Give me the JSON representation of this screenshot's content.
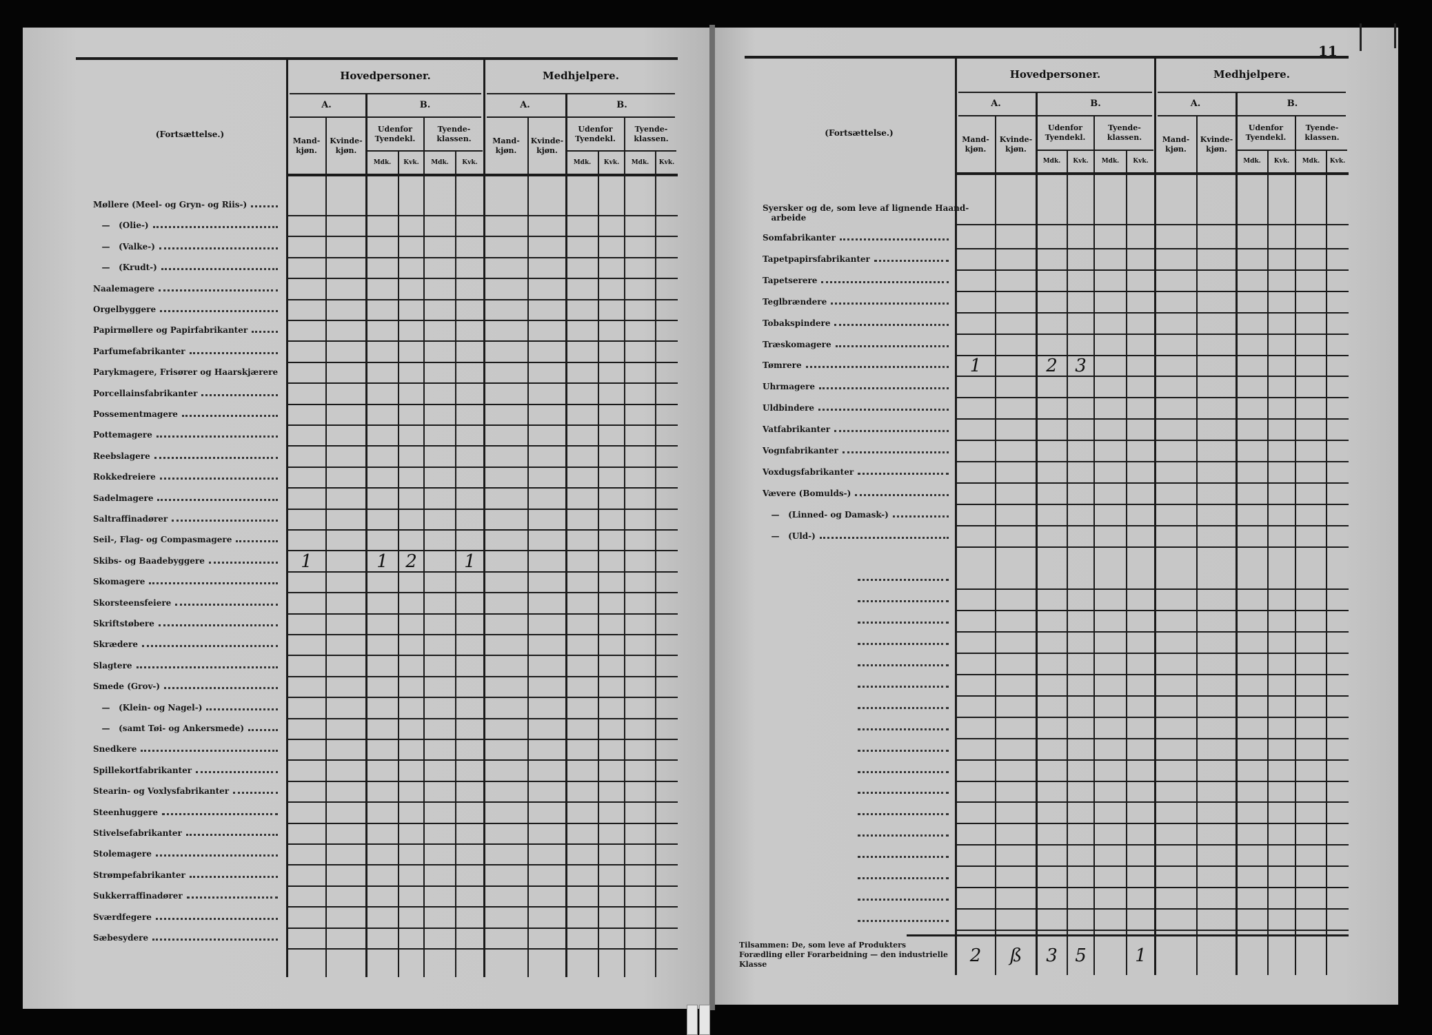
{
  "page_number": "11",
  "header": {
    "column_title": "(Fortsættelse.)",
    "groups": [
      "Hovedpersoner.",
      "Medhjelpere."
    ],
    "sections": [
      "A.",
      "B."
    ],
    "a_cols": [
      "Mand-\nkjøn.",
      "Kvinde-\nkjøn."
    ],
    "b_cols": [
      "Udenfor\nTyendekl.",
      "Tyende-\nklassen."
    ],
    "sub_cols": [
      "Mdk.",
      "Kvk."
    ]
  },
  "left": {
    "rows": [
      {
        "label": "Møllere (Meel- og Gryn- og Riis-)"
      },
      {
        "label": "   —   (Olie-)"
      },
      {
        "label": "   —   (Valke-)"
      },
      {
        "label": "   —   (Krudt-)"
      },
      {
        "label": "Naalemagere"
      },
      {
        "label": "Orgelbyggere"
      },
      {
        "label": "Papirmøllere og Papirfabrikanter"
      },
      {
        "label": "Parfumefabrikanter"
      },
      {
        "label": "Parykmagere, Frisører og Haarskjærere"
      },
      {
        "label": "Porcellainsfabrikanter"
      },
      {
        "label": "Possementmagere"
      },
      {
        "label": "Pottemagere"
      },
      {
        "label": "Reebslagere"
      },
      {
        "label": "Rokkedreiere"
      },
      {
        "label": "Sadelmagere"
      },
      {
        "label": "Saltraffinadører"
      },
      {
        "label": "Seil-, Flag- og Compasmagere"
      },
      {
        "label": "Skibs- og Baadebyggere",
        "values": [
          "1",
          "",
          "1",
          "2",
          "",
          "1",
          "",
          "",
          "",
          "",
          "",
          ""
        ]
      },
      {
        "label": "Skomagere"
      },
      {
        "label": "Skorsteensfeiere"
      },
      {
        "label": "Skriftstøbere"
      },
      {
        "label": "Skrædere"
      },
      {
        "label": "Slagtere"
      },
      {
        "label": "Smede (Grov-)"
      },
      {
        "label": "   —   (Klein- og Nagel-)"
      },
      {
        "label": "   —   (samt Tøi- og Ankersmede)"
      },
      {
        "label": "Snedkere"
      },
      {
        "label": "Spillekortfabrikanter"
      },
      {
        "label": "Stearin- og Voxlysfabrikanter"
      },
      {
        "label": "Steenhuggere"
      },
      {
        "label": "Stivelsefabrikanter"
      },
      {
        "label": "Stolemagere"
      },
      {
        "label": "Strømpefabrikanter"
      },
      {
        "label": "Sukkerraffinadører"
      },
      {
        "label": "Sværdfegere"
      },
      {
        "label": "Sæbesydere"
      }
    ]
  },
  "right": {
    "rows": [
      {
        "label": "Syersker og de, som leve af lignende Haand-\n   arbeide"
      },
      {
        "label": "Somfabrikanter"
      },
      {
        "label": "Tapetpapirsfabrikanter"
      },
      {
        "label": "Tapetserere"
      },
      {
        "label": "Teglbrændere"
      },
      {
        "label": "Tobakspindere"
      },
      {
        "label": "Træskomagere"
      },
      {
        "label": "Tømrere",
        "values": [
          "1",
          "",
          "2",
          "3",
          "",
          "",
          "",
          "",
          "",
          "",
          "",
          ""
        ]
      },
      {
        "label": "Uhrmagere"
      },
      {
        "label": "Uldbindere"
      },
      {
        "label": "Vatfabrikanter"
      },
      {
        "label": "Vognfabrikanter"
      },
      {
        "label": "Voxdugsfabrikanter"
      },
      {
        "label": "Vævere (Bomulds-)"
      },
      {
        "label": "   —   (Linned- og Damask-)"
      },
      {
        "label": "   —   (Uld-)"
      }
    ],
    "total": {
      "label": "Tilsammen: De, som leve af Produkters Forædling eller Forarbeidning — den industrielle Klasse",
      "values": [
        "2",
        "ß",
        "3",
        "5",
        "",
        "1",
        "",
        "",
        "",
        "",
        "",
        ""
      ]
    }
  }
}
